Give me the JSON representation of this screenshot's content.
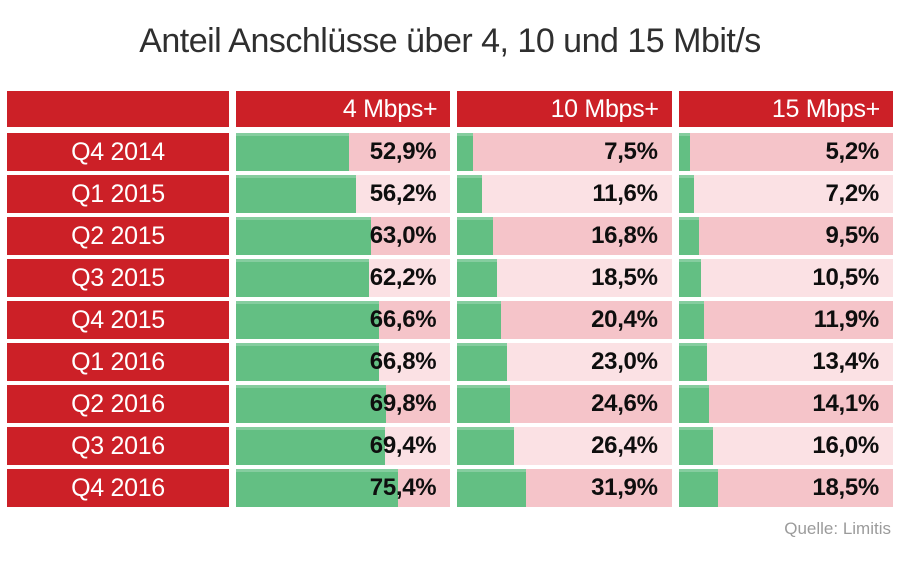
{
  "title": "Anteil Anschlüsse über 4, 10 und 15 Mbit/s",
  "source": "Quelle: Limitis",
  "colors": {
    "header_red": "#CC2027",
    "bar_green": "#63BF83",
    "row_pink_dark": "#F5C4C9",
    "row_pink_light": "#FBE1E4"
  },
  "chart_data": {
    "type": "bar",
    "orientation": "horizontal",
    "bar_scale_max": 100,
    "title": "Anteil Anschlüsse über 4, 10 und 15 Mbit/s",
    "categories": [
      "Q4 2014",
      "Q1 2015",
      "Q2 2015",
      "Q3 2015",
      "Q4 2015",
      "Q1 2016",
      "Q2 2016",
      "Q3 2016",
      "Q4 2016"
    ],
    "series": [
      {
        "name": "4 Mbps+",
        "values": [
          52.9,
          56.2,
          63.0,
          62.2,
          66.6,
          66.8,
          69.8,
          69.4,
          75.4
        ],
        "labels": [
          "52,9%",
          "56,2%",
          "63,0%",
          "62,2%",
          "66,6%",
          "66,8%",
          "69,8%",
          "69,4%",
          "75,4%"
        ]
      },
      {
        "name": "10 Mbps+",
        "values": [
          7.5,
          11.6,
          16.8,
          18.5,
          20.4,
          23.0,
          24.6,
          26.4,
          31.9
        ],
        "labels": [
          "7,5%",
          "11,6%",
          "16,8%",
          "18,5%",
          "20,4%",
          "23,0%",
          "24,6%",
          "26,4%",
          "31,9%"
        ]
      },
      {
        "name": "15 Mbps+",
        "values": [
          5.2,
          7.2,
          9.5,
          10.5,
          11.9,
          13.4,
          14.1,
          16.0,
          18.5
        ],
        "labels": [
          "5,2%",
          "7,2%",
          "9,5%",
          "10,5%",
          "11,9%",
          "13,4%",
          "14,1%",
          "16,0%",
          "18,5%"
        ]
      }
    ],
    "legend_position": "header-row",
    "grid": false
  }
}
